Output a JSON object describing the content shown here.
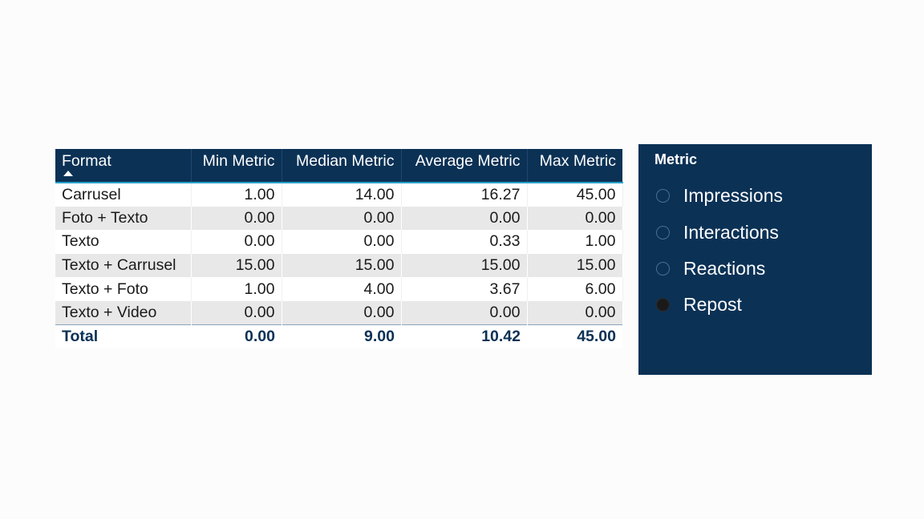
{
  "table": {
    "columns": [
      "Format",
      "Min Metric",
      "Median Metric",
      "Average Metric",
      "Max Metric"
    ],
    "sort": {
      "column": "Format",
      "direction": "ascending"
    },
    "rows": [
      {
        "format": "Carrusel",
        "min": "1.00",
        "median": "14.00",
        "average": "16.27",
        "max": "45.00"
      },
      {
        "format": "Foto + Texto",
        "min": "0.00",
        "median": "0.00",
        "average": "0.00",
        "max": "0.00"
      },
      {
        "format": "Texto",
        "min": "0.00",
        "median": "0.00",
        "average": "0.33",
        "max": "1.00"
      },
      {
        "format": "Texto + Carrusel",
        "min": "15.00",
        "median": "15.00",
        "average": "15.00",
        "max": "15.00"
      },
      {
        "format": "Texto + Foto",
        "min": "1.00",
        "median": "4.00",
        "average": "3.67",
        "max": "6.00"
      },
      {
        "format": "Texto + Video",
        "min": "0.00",
        "median": "0.00",
        "average": "0.00",
        "max": "0.00"
      }
    ],
    "total": {
      "label": "Total",
      "min": "0.00",
      "median": "9.00",
      "average": "10.42",
      "max": "45.00"
    }
  },
  "slicer": {
    "title": "Metric",
    "options": [
      {
        "label": "Impressions",
        "selected": false
      },
      {
        "label": "Interactions",
        "selected": false
      },
      {
        "label": "Reactions",
        "selected": false
      },
      {
        "label": "Repost",
        "selected": true
      }
    ]
  },
  "colors": {
    "header_bg": "#0b3155",
    "slicer_bg": "#0b3155",
    "accent_line": "#26a0c8",
    "row_alt": "#e8e8e8",
    "total_text": "#0b3155"
  }
}
